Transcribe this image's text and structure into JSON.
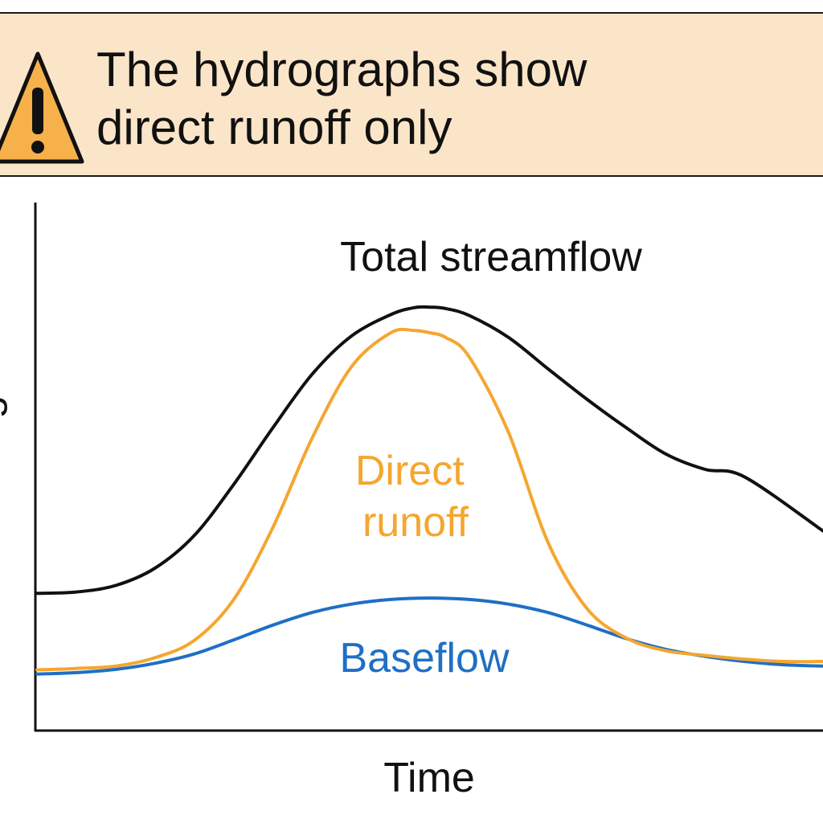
{
  "banner": {
    "icon": "warning-icon",
    "line1": "The hydrographs show",
    "line2": "direct runoff only",
    "background": "#fbe5c8",
    "icon_fill": "#f7b14a"
  },
  "chart_data": {
    "type": "line",
    "xlabel": "Time",
    "ylabel": "Discharge",
    "xlim": [
      0,
      100
    ],
    "ylim": [
      0,
      100
    ],
    "grid": false,
    "ticks": false,
    "series": [
      {
        "name": "Total streamflow",
        "color": "#111111",
        "x": [
          0,
          5,
          10,
          15,
          20,
          25,
          30,
          35,
          40,
          45,
          48,
          50,
          52,
          55,
          60,
          65,
          70,
          75,
          80,
          85,
          90,
          95,
          100
        ],
        "y": [
          29.6,
          29.9,
          31.3,
          35.0,
          42.0,
          52.9,
          65.1,
          76.6,
          84.8,
          89.4,
          90.9,
          91.0,
          90.7,
          89.2,
          84.5,
          77.8,
          71.2,
          65.1,
          59.5,
          56.2,
          54.6,
          43.0,
          43.0
        ]
      },
      {
        "name": "Direct runoff",
        "color": "#f5a62f",
        "x": [
          0,
          5,
          10,
          15,
          20,
          25,
          30,
          35,
          40,
          45,
          48,
          50,
          52,
          55,
          60,
          65,
          70,
          75,
          80,
          85,
          90,
          95,
          100
        ],
        "y": [
          13.2,
          13.5,
          14.0,
          15.8,
          19.5,
          28.2,
          43.7,
          62.9,
          78.2,
          85.5,
          86.0,
          85.5,
          84.5,
          80.3,
          64.1,
          40.6,
          26.3,
          20.0,
          17.3,
          16.3,
          15.5,
          15.0,
          15.0
        ]
      },
      {
        "name": "Baseflow",
        "color": "#1f6fc5",
        "x": [
          0,
          5,
          10,
          15,
          20,
          25,
          30,
          35,
          40,
          45,
          50,
          55,
          60,
          65,
          70,
          75,
          80,
          85,
          90,
          95,
          100
        ],
        "y": [
          12.3,
          12.6,
          13.3,
          14.6,
          16.6,
          19.6,
          22.8,
          25.5,
          27.3,
          28.3,
          28.6,
          28.3,
          27.3,
          25.5,
          22.8,
          19.9,
          17.6,
          16.1,
          15.0,
          14.3,
          14.0
        ]
      }
    ]
  }
}
